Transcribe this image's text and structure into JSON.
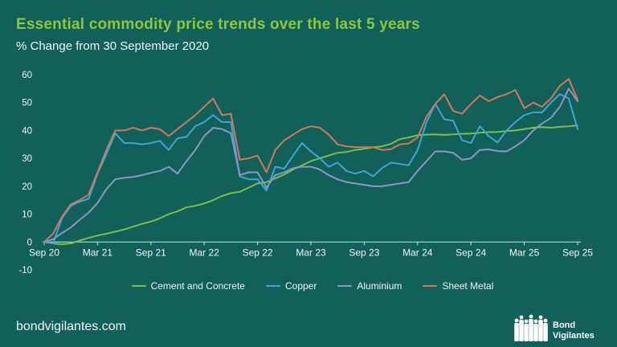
{
  "header": {
    "title": "Essential commodity price trends over the last 5 years",
    "subtitle": "% Change from 30 September 2020"
  },
  "footer": {
    "website": "bondvigilantes.com",
    "logo_text_line1": "Bond",
    "logo_text_line2": "Vigilantes"
  },
  "colors": {
    "background": "#116059",
    "title_green": "#8dc63f",
    "text": "#f2f7f5",
    "axis": "#cfe3e0"
  },
  "chart_data": {
    "type": "line",
    "title": "Essential commodity price trends over the last 5 years",
    "subtitle": "% Change from 30 September 2020",
    "x_unit": "monthly from Sep 2020 to Sep 2025",
    "x_months": 61,
    "x_tick_labels": [
      "Sep 20",
      "Mar 21",
      "Sep 21",
      "Mar 22",
      "Sep 22",
      "Mar 23",
      "Sep 23",
      "Mar 24",
      "Sep 24",
      "Mar 25",
      "Sep 25"
    ],
    "x_tick_month_indices": [
      0,
      6,
      12,
      18,
      24,
      30,
      36,
      42,
      48,
      54,
      60
    ],
    "y_ticks": [
      60,
      50,
      40,
      30,
      20,
      10,
      0,
      -10
    ],
    "ylim": [
      -10,
      60
    ],
    "grid": false,
    "legend_position": "bottom",
    "series": [
      {
        "name": "Cement and Concrete",
        "color": "#7cbe4b",
        "values": [
          0,
          -0.5,
          -0.8,
          -0.5,
          0.5,
          1.5,
          2.3,
          3,
          3.7,
          4.5,
          5.5,
          6.5,
          7.3,
          8.5,
          10,
          11,
          12.4,
          13,
          13.8,
          15,
          16.5,
          17.5,
          18,
          19.5,
          21,
          21.5,
          22.8,
          24.2,
          26,
          27.5,
          29,
          30,
          31,
          32,
          32.3,
          33,
          33.4,
          34,
          34.3,
          35.2,
          36.9,
          37.5,
          38.3,
          38.5,
          38.6,
          38.4,
          38.6,
          38.8,
          38.9,
          39.2,
          39.4,
          39.5,
          39.8,
          40,
          40.5,
          41,
          41.2,
          41,
          41.3,
          41.5,
          41.8
        ]
      },
      {
        "name": "Copper",
        "color": "#41a4d4",
        "values": [
          0,
          -0.5,
          8.5,
          13,
          14.5,
          15.5,
          24.5,
          31.5,
          39,
          35.5,
          35.5,
          35,
          35.5,
          36.3,
          33,
          37.2,
          37.7,
          41.5,
          43,
          45.5,
          43,
          43,
          23.5,
          22.5,
          22.5,
          18.5,
          27,
          26.3,
          31,
          35.5,
          32.5,
          30,
          27,
          28.5,
          25.5,
          24.5,
          25.5,
          23.5,
          26.5,
          28.5,
          28,
          27.5,
          33,
          43,
          49.5,
          44,
          43.5,
          36.5,
          35.5,
          41.5,
          38,
          35.7,
          40,
          43,
          45.5,
          46.5,
          46.5,
          50,
          53,
          51.5,
          40.5
        ]
      },
      {
        "name": "Aluminium",
        "color": "#8e96c4",
        "values": [
          0,
          1,
          3.2,
          5.2,
          8,
          10.5,
          14,
          19,
          22.5,
          23,
          23.3,
          24,
          24.8,
          25.5,
          27,
          24.5,
          29,
          33,
          38,
          41,
          40.5,
          39,
          24,
          25,
          25,
          19.5,
          24,
          25,
          26.5,
          27,
          27,
          26,
          24,
          22.5,
          21.5,
          21,
          20.5,
          20,
          20,
          20.5,
          21,
          21.5,
          25.5,
          29,
          32.5,
          32.5,
          32,
          29.5,
          30,
          33,
          33.2,
          32.6,
          32.5,
          34.3,
          36.5,
          40,
          42.5,
          44.5,
          48.5,
          55,
          50.5
        ]
      },
      {
        "name": "Sheet Metal",
        "color": "#d1795b",
        "values": [
          0,
          3,
          9,
          13.5,
          15,
          17,
          25,
          33,
          40,
          40,
          41,
          40,
          41,
          40.5,
          38,
          40.5,
          43,
          45.5,
          48.5,
          51.5,
          45.5,
          46,
          29.5,
          30,
          31,
          25,
          33,
          36.5,
          38.5,
          40.5,
          41.5,
          41,
          38.5,
          35,
          34.3,
          34,
          34,
          34,
          33,
          33.3,
          35,
          35.3,
          37.5,
          45,
          49.5,
          53,
          47,
          46,
          49.5,
          52.5,
          50.5,
          52,
          53,
          54.5,
          48,
          50,
          48.5,
          51.5,
          56,
          58.5,
          51
        ]
      }
    ]
  }
}
